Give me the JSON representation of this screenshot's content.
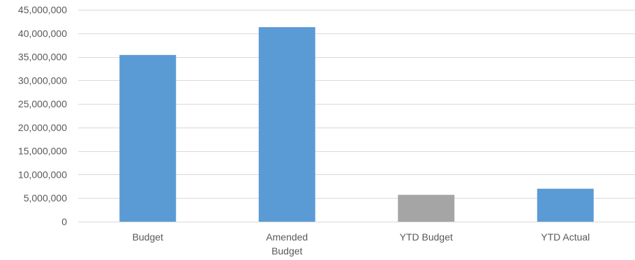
{
  "chart_data": {
    "type": "bar",
    "categories": [
      [
        "Budget"
      ],
      [
        "Amended",
        "Budget"
      ],
      [
        "YTD Budget"
      ],
      [
        "YTD Actual"
      ]
    ],
    "values": [
      35400000,
      41300000,
      5700000,
      7000000
    ],
    "bar_colors": [
      "#5b9bd5",
      "#5b9bd5",
      "#a5a5a5",
      "#5b9bd5"
    ],
    "ylim": [
      0,
      45000000
    ],
    "yticks": [
      0,
      5000000,
      10000000,
      15000000,
      20000000,
      25000000,
      30000000,
      35000000,
      40000000,
      45000000
    ],
    "ytick_labels": [
      "0",
      "5,000,000",
      "10,000,000",
      "15,000,000",
      "20,000,000",
      "25,000,000",
      "30,000,000",
      "35,000,000",
      "40,000,000",
      "45,000,000"
    ],
    "grid": true,
    "title": "",
    "xlabel": "",
    "ylabel": ""
  }
}
